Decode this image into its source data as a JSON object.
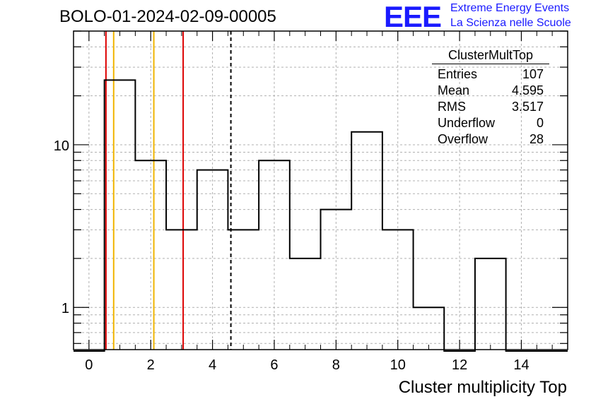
{
  "title": "BOLO-01-2024-02-09-00005",
  "logo": {
    "mark": "EEE",
    "line1": "Extreme Energy Events",
    "line2": "La Scienza nelle Scuole",
    "color": "#1a1aff"
  },
  "stats": {
    "name": "ClusterMultTop",
    "rows": [
      {
        "label": "Entries",
        "value": "107"
      },
      {
        "label": "Mean",
        "value": "4.595"
      },
      {
        "label": "RMS",
        "value": "3.517"
      },
      {
        "label": "Underflow",
        "value": "0"
      },
      {
        "label": "Overflow",
        "value": "28"
      }
    ]
  },
  "chart_data": {
    "type": "bar",
    "histogram": true,
    "xlabel": "Cluster multiplicity Top",
    "ylabel": "",
    "xlim": [
      -0.5,
      15.5
    ],
    "ylim": [
      0.55,
      50
    ],
    "yscale": "log",
    "grid": true,
    "x_ticks": [
      0,
      2,
      4,
      6,
      8,
      10,
      12,
      14
    ],
    "y_ticks": [
      1,
      10
    ],
    "bin_width": 1,
    "bin_centers": [
      0,
      1,
      2,
      3,
      4,
      5,
      6,
      7,
      8,
      9,
      10,
      11,
      12,
      13,
      14,
      15
    ],
    "values": [
      0,
      25,
      8,
      3,
      7,
      3,
      8,
      2,
      4,
      12,
      3,
      1,
      0,
      2,
      0,
      0
    ],
    "vertical_lines": [
      {
        "x": 0.55,
        "color": "#dd0000",
        "style": "solid"
      },
      {
        "x": 0.8,
        "color": "#f0b400",
        "style": "solid"
      },
      {
        "x": 2.1,
        "color": "#f0b400",
        "style": "solid"
      },
      {
        "x": 3.05,
        "color": "#dd0000",
        "style": "solid"
      },
      {
        "x": 4.595,
        "color": "#000000",
        "style": "dashed"
      }
    ]
  }
}
